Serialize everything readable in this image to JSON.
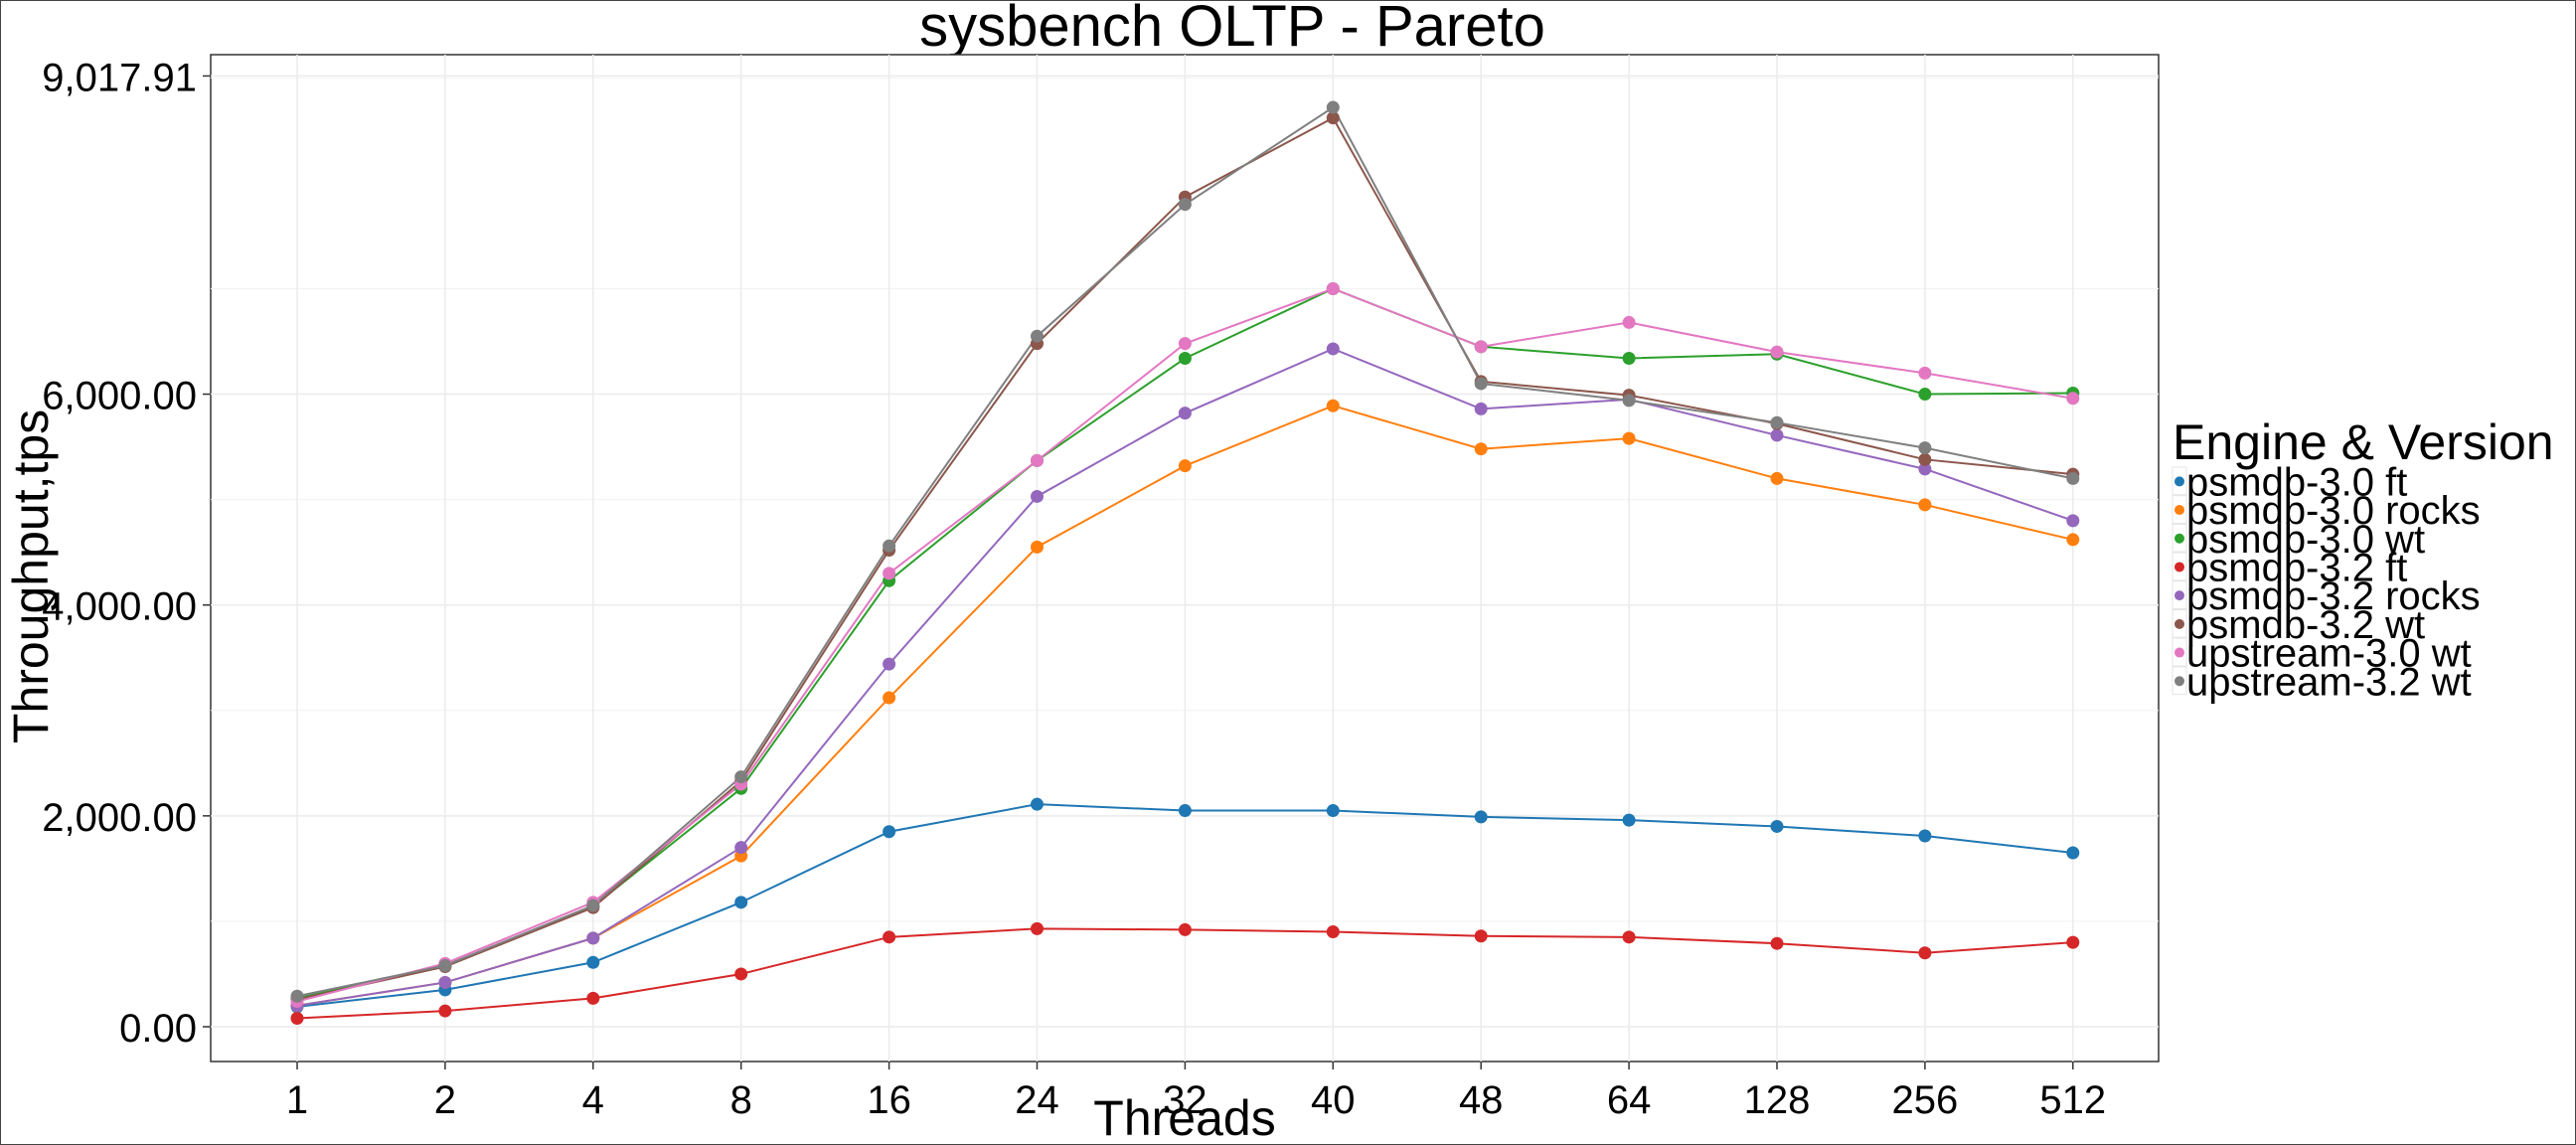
{
  "chart_data": {
    "type": "line",
    "title": "sysbench OLTP - Pareto",
    "xlabel": "Threads",
    "ylabel": "Throughput,tps",
    "categories": [
      "1",
      "2",
      "4",
      "8",
      "16",
      "24",
      "32",
      "40",
      "48",
      "64",
      "128",
      "256",
      "512"
    ],
    "y_ticks": [
      {
        "value": 0,
        "label": "0.00"
      },
      {
        "value": 2000,
        "label": "2,000.00"
      },
      {
        "value": 4000,
        "label": "4,000.00"
      },
      {
        "value": 6000,
        "label": "6,000.00"
      },
      {
        "value": 9017.91,
        "label": "9,017.91"
      }
    ],
    "ylim": [
      -330,
      9220
    ],
    "grid": true,
    "legend_title": "Engine & Version",
    "legend_position": "right",
    "series": [
      {
        "name": "psmdb-3.0 ft",
        "color": "#1f77b4",
        "values": [
          190,
          350,
          610,
          1180,
          1850,
          2110,
          2050,
          2050,
          1990,
          1960,
          1900,
          1810,
          1650
        ]
      },
      {
        "name": "psmdb-3.0 rocks",
        "color": "#ff7f0e",
        "values": [
          200,
          420,
          840,
          1620,
          3120,
          4550,
          5320,
          5890,
          5480,
          5580,
          5200,
          4950,
          4620
        ]
      },
      {
        "name": "psmdb-3.0 wt",
        "color": "#2ca02c",
        "values": [
          270,
          580,
          1140,
          2260,
          4230,
          5370,
          6340,
          7000,
          6450,
          6340,
          6380,
          6000,
          6010
        ]
      },
      {
        "name": "psmdb-3.2 ft",
        "color": "#d62728",
        "values": [
          80,
          150,
          270,
          500,
          850,
          930,
          920,
          900,
          860,
          850,
          790,
          700,
          800
        ]
      },
      {
        "name": "psmdb-3.2 rocks",
        "color": "#9467bd",
        "values": [
          200,
          420,
          840,
          1700,
          3440,
          5030,
          5820,
          6430,
          5860,
          5950,
          5610,
          5290,
          4800
        ]
      },
      {
        "name": "psmdb-3.2 wt",
        "color": "#8c564b",
        "values": [
          260,
          570,
          1130,
          2330,
          4520,
          6480,
          7870,
          8620,
          6120,
          5990,
          5720,
          5380,
          5240
        ]
      },
      {
        "name": "upstream-3.0 wt",
        "color": "#e377c2",
        "values": [
          240,
          600,
          1180,
          2300,
          4300,
          5370,
          6480,
          7000,
          6450,
          6680,
          6400,
          6200,
          5960
        ]
      },
      {
        "name": "upstream-3.2 wt",
        "color": "#7f7f7f",
        "values": [
          290,
          580,
          1150,
          2370,
          4560,
          6550,
          7800,
          8720,
          6100,
          5940,
          5730,
          5490,
          5200
        ]
      }
    ]
  }
}
